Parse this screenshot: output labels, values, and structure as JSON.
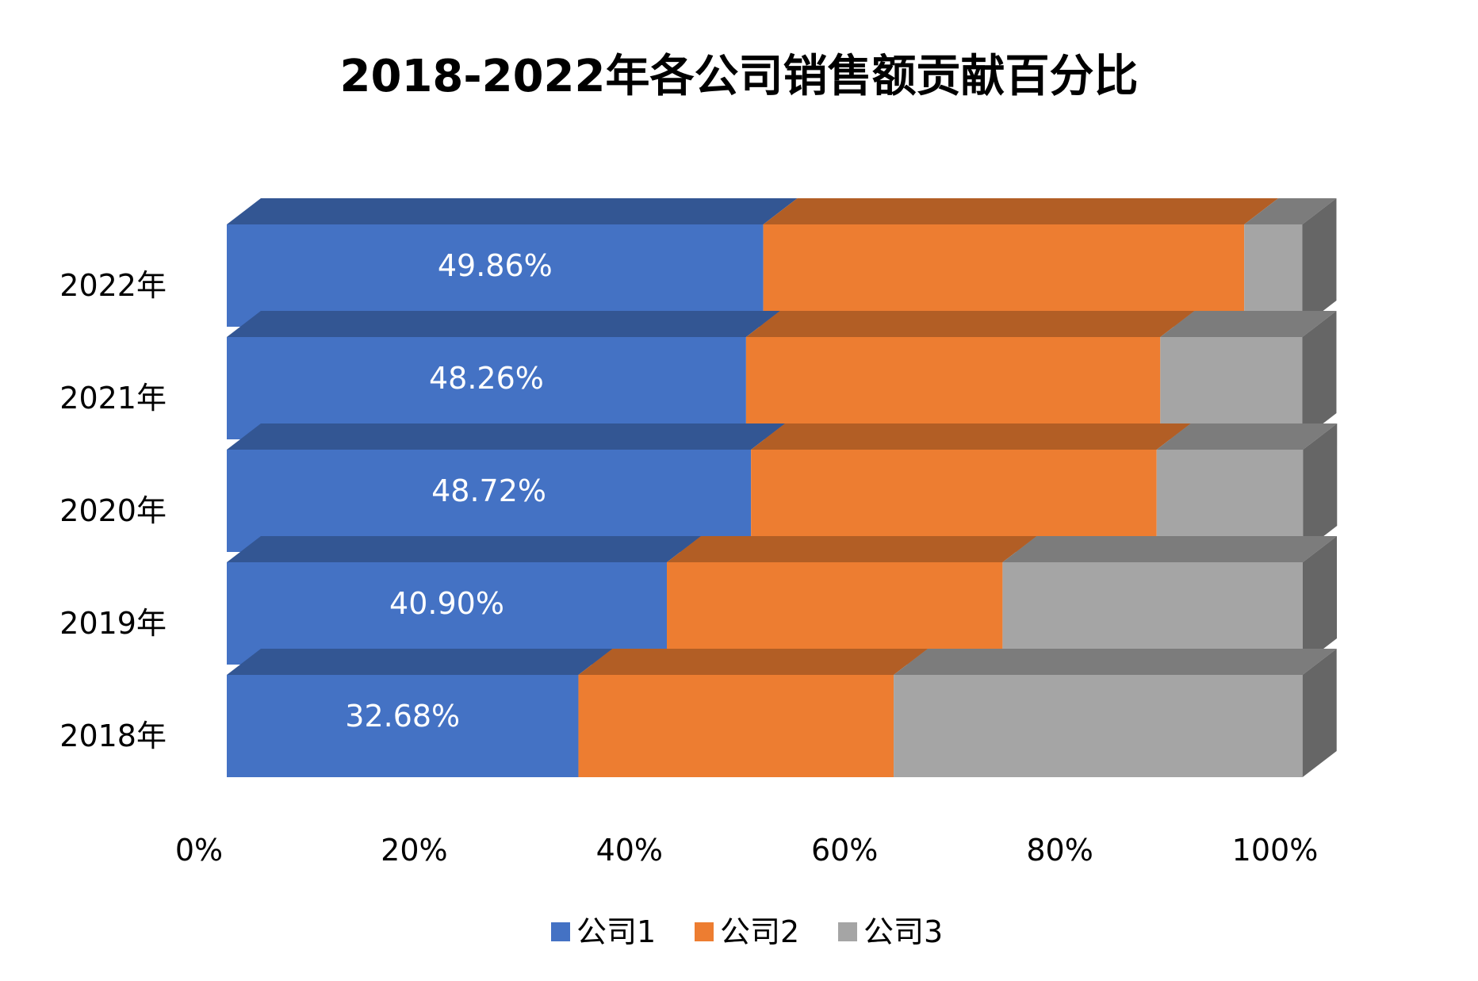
{
  "chart_data": {
    "type": "bar",
    "orientation": "horizontal",
    "stacked": "percent",
    "style": "3d",
    "title": "2018-2022年各公司销售额贡献百分比",
    "categories": [
      "2018年",
      "2019年",
      "2020年",
      "2021年",
      "2022年"
    ],
    "series": [
      {
        "name": "公司1",
        "color": "#4472C4",
        "values": [
          32.68,
          40.9,
          48.72,
          48.26,
          49.86
        ],
        "labels": [
          "32.68%",
          "40.90%",
          "48.72%",
          "48.26%",
          "49.86%"
        ]
      },
      {
        "name": "公司2",
        "color": "#ED7D31",
        "values": [
          29.3,
          31.2,
          37.7,
          38.5,
          44.7
        ]
      },
      {
        "name": "公司3",
        "color": "#A5A5A5",
        "values": [
          38.0,
          27.9,
          13.6,
          13.2,
          5.4
        ]
      }
    ],
    "xlim": [
      0,
      100
    ],
    "x_ticks": [
      "0%",
      "20%",
      "40%",
      "60%",
      "80%",
      "100%"
    ],
    "grid": false,
    "legend": "bottom"
  }
}
